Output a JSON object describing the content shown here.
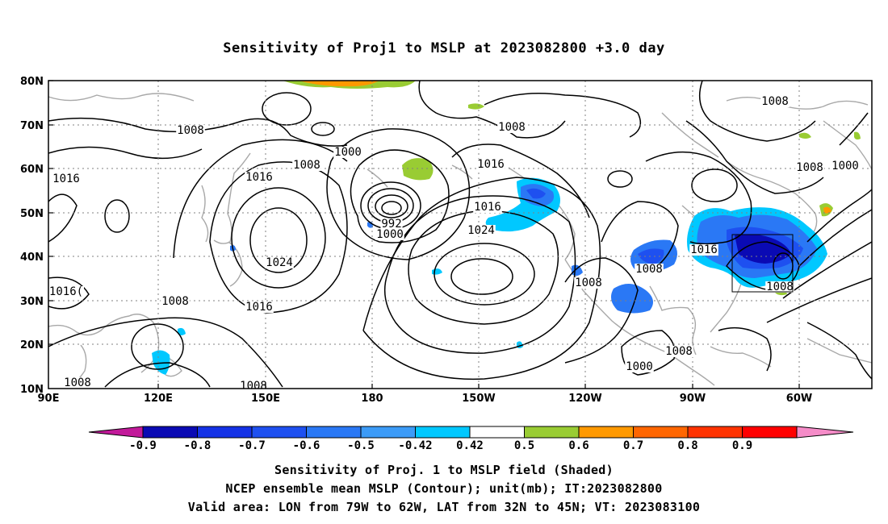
{
  "title": "Sensitivity of Proj1 to MSLP at 2023082800 +3.0 day",
  "lat_labels": [
    "80N",
    "70N",
    "60N",
    "50N",
    "40N",
    "30N",
    "20N",
    "10N"
  ],
  "lon_labels": [
    "90E",
    "120E",
    "150E",
    "180",
    "150W",
    "120W",
    "90W",
    "60W"
  ],
  "colorbar": {
    "labels": [
      "-0.9",
      "-0.8",
      "-0.7",
      "-0.6",
      "-0.5",
      "-0.42",
      "0.42",
      "0.5",
      "0.6",
      "0.7",
      "0.8",
      "0.9"
    ],
    "colors": [
      "#c21a9a",
      "#0a0ab4",
      "#1432e6",
      "#1e50f0",
      "#2a78f5",
      "#3c9bf7",
      "#00c8ff",
      "#ffffff",
      "#99cc33",
      "#ff9900",
      "#ff6600",
      "#ff3300",
      "#ff0000",
      "#f58cc8"
    ]
  },
  "contour_labels": [
    "1008",
    "1000",
    "1008",
    "1016",
    "1016",
    "1024",
    "1016(",
    "1008",
    "1016",
    "1008",
    "1008",
    "992",
    "1000",
    "1016",
    "1024",
    "1008",
    "1016",
    "1008",
    "1008",
    "1016",
    "1008",
    "1008",
    "1008",
    "1000",
    "1008",
    "1000"
  ],
  "valid_box": {
    "lon": [
      -79,
      -62
    ],
    "lat": [
      32,
      45
    ]
  },
  "captions": [
    "Sensitivity of Proj. 1 to MSLP field (Shaded)",
    "NCEP ensemble mean MSLP (Contour); unit(mb); IT:2023082800",
    "Valid area: LON from 79W to 62W, LAT from 32N to 45N; VT: 2023083100"
  ]
}
